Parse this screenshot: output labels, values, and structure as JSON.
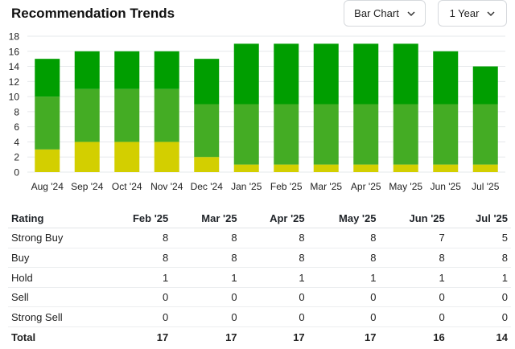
{
  "header": {
    "title": "Recommendation Trends",
    "chart_type_label": "Bar Chart",
    "range_label": "1 Year"
  },
  "colors": {
    "strong_buy": "#009e00",
    "buy": "#44ac24",
    "hold": "#d3cf00",
    "sell": "#e08a00",
    "strong_sell": "#d9302c"
  },
  "chart_data": {
    "type": "bar",
    "stacked": true,
    "categories": [
      "Aug '24",
      "Sep '24",
      "Oct '24",
      "Nov '24",
      "Dec '24",
      "Jan '25",
      "Feb '25",
      "Mar '25",
      "Apr '25",
      "May '25",
      "Jun '25",
      "Jul '25"
    ],
    "series": [
      {
        "key": "hold",
        "values": [
          3,
          4,
          4,
          4,
          2,
          1,
          1,
          1,
          1,
          1,
          1,
          1
        ]
      },
      {
        "key": "buy",
        "values": [
          7,
          7,
          7,
          7,
          7,
          8,
          8,
          8,
          8,
          8,
          8,
          8
        ]
      },
      {
        "key": "strong_buy",
        "values": [
          5,
          5,
          5,
          5,
          6,
          8,
          8,
          8,
          8,
          8,
          7,
          5
        ]
      }
    ],
    "yticks": [
      0,
      2,
      4,
      6,
      8,
      10,
      12,
      14,
      16,
      18
    ],
    "ylim": [
      0,
      18
    ],
    "grid": true
  },
  "table": {
    "headers": [
      "Rating",
      "Feb '25",
      "Mar '25",
      "Apr '25",
      "May '25",
      "Jun '25",
      "Jul '25"
    ],
    "rows": [
      {
        "label": "Strong Buy",
        "values": [
          "8",
          "8",
          "8",
          "8",
          "7",
          "5"
        ]
      },
      {
        "label": "Buy",
        "values": [
          "8",
          "8",
          "8",
          "8",
          "8",
          "8"
        ]
      },
      {
        "label": "Hold",
        "values": [
          "1",
          "1",
          "1",
          "1",
          "1",
          "1"
        ]
      },
      {
        "label": "Sell",
        "values": [
          "0",
          "0",
          "0",
          "0",
          "0",
          "0"
        ]
      },
      {
        "label": "Strong Sell",
        "values": [
          "0",
          "0",
          "0",
          "0",
          "0",
          "0"
        ]
      }
    ],
    "total": {
      "label": "Total",
      "values": [
        "17",
        "17",
        "17",
        "17",
        "16",
        "14"
      ]
    }
  }
}
